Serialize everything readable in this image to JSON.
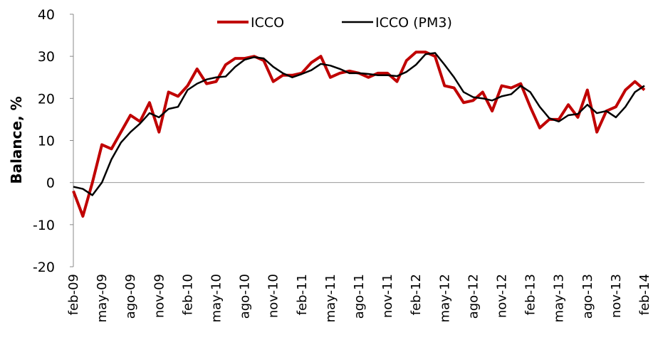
{
  "chart_data": {
    "type": "line",
    "y_label": "Balance, %",
    "categories": [
      "feb-09",
      null,
      null,
      "may-09",
      null,
      null,
      "ago-09",
      null,
      null,
      "nov-09",
      null,
      null,
      "feb-10",
      null,
      null,
      "may-10",
      null,
      null,
      "ago-10",
      null,
      null,
      "nov-10",
      null,
      null,
      "feb-11",
      null,
      null,
      "may-11",
      null,
      null,
      "ago-11",
      null,
      null,
      "nov-11",
      null,
      null,
      "feb-12",
      null,
      null,
      "may-12",
      null,
      null,
      "ago-12",
      null,
      null,
      "nov-12",
      null,
      null,
      "feb-13",
      null,
      null,
      "may-13",
      null,
      null,
      "ago-13",
      null,
      null,
      "nov-13",
      null,
      null,
      "feb-14"
    ],
    "series": [
      {
        "name": "ICCO",
        "color": "#c00000",
        "width": 4,
        "values": [
          -2,
          -8,
          0,
          9,
          8,
          12,
          16,
          14.5,
          19,
          12,
          21.5,
          20.5,
          23,
          27,
          23.5,
          24,
          28,
          29.5,
          29.5,
          30,
          29,
          24,
          25.5,
          25.5,
          26,
          28.5,
          30,
          25,
          26,
          26.5,
          26,
          25,
          26,
          26,
          24,
          29,
          31,
          31,
          30,
          23,
          22.5,
          19,
          19.5,
          21.5,
          17,
          23,
          22.5,
          23.5,
          18,
          13,
          15,
          15,
          18.5,
          15.5,
          22,
          12,
          17,
          18,
          22,
          24,
          22
        ]
      },
      {
        "name": "ICCO (PM3)",
        "color": "#000000",
        "width": 2.5,
        "values": [
          -1,
          -1.5,
          -3,
          0,
          5.5,
          9.5,
          12,
          14,
          16.5,
          15.5,
          17.5,
          18,
          22,
          23.5,
          24.5,
          25,
          25.2,
          27.5,
          29.2,
          29.8,
          29.5,
          27.5,
          26,
          25,
          25.8,
          26.7,
          28.2,
          27.8,
          27,
          26,
          26,
          25.8,
          25.5,
          25.5,
          25.3,
          26.3,
          28,
          30.5,
          30.8,
          28,
          25,
          21.5,
          20.3,
          20,
          19.5,
          20.5,
          21,
          23,
          21.5,
          18,
          15.3,
          14.5,
          16,
          16.3,
          18.5,
          16.5,
          17,
          15.5,
          18,
          21.5,
          23
        ]
      }
    ],
    "ylim": [
      -20,
      40
    ],
    "yticks": [
      -20,
      -10,
      0,
      10,
      20,
      30,
      40
    ]
  }
}
